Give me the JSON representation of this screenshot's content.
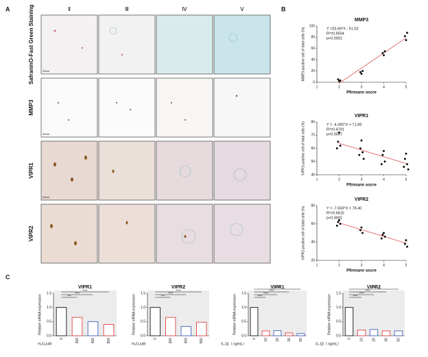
{
  "panel_labels": [
    "A",
    "B",
    "C"
  ],
  "panel_a": {
    "columns": [
      "Ⅱ",
      "Ⅲ",
      "Ⅳ",
      "Ⅴ"
    ],
    "rows": [
      "SafraninO-Fast Green Staining",
      "MMP3",
      "VIPR1",
      "VIPR2"
    ],
    "scale_bar": "20um"
  },
  "chart_data": [
    {
      "type": "scatter",
      "title": "MMP3",
      "xlabel": "Pfirmann socre",
      "ylabel": "MMP3-positive cell of total cells (%)",
      "annotations": [
        "Y =25.69*X - 51.02",
        "R²=0.9504",
        "p<0.0001"
      ],
      "x": [
        2,
        2,
        2,
        3,
        3,
        3,
        4,
        4,
        4,
        5,
        5,
        5
      ],
      "values": [
        2,
        5,
        3,
        15,
        18,
        20,
        48,
        52,
        55,
        75,
        82,
        88
      ],
      "xlim": [
        1,
        5
      ],
      "xticks": [
        1,
        2,
        3,
        4,
        5
      ],
      "ylim": [
        0,
        100
      ],
      "yticks": [
        0,
        20,
        40,
        60,
        80,
        100
      ],
      "color": "#111111",
      "line_color": "#e05050"
    },
    {
      "type": "scatter",
      "title": "VIPR1",
      "xlabel": "Pfirmann socre",
      "ylabel": "VIPR1-positive cell of total cells (%)",
      "annotations": [
        "Y = -4.492*X + 71.89",
        "R²=0.4791",
        "p=0.0007"
      ],
      "x": [
        2,
        2,
        2,
        2,
        3,
        3,
        3,
        3,
        3,
        4,
        4,
        4,
        4,
        5,
        5,
        5,
        5,
        5
      ],
      "values": [
        72,
        65,
        62,
        60,
        66,
        60,
        57,
        55,
        52,
        58,
        55,
        50,
        48,
        56,
        52,
        48,
        46,
        44
      ],
      "xlim": [
        1,
        5
      ],
      "xticks": [
        1,
        2,
        3,
        4,
        5
      ],
      "ylim": [
        40,
        80
      ],
      "yticks": [
        40,
        50,
        60,
        70,
        80
      ],
      "color": "#111111",
      "line_color": "#e05050"
    },
    {
      "type": "scatter",
      "title": "VIPR2",
      "xlabel": "Pfirmann socre",
      "ylabel": "VIPR2-positive cell of total cells (%)",
      "annotations": [
        "Y = -7.563*X + 78.40",
        "R²=0.6815",
        "p<0.0001"
      ],
      "x": [
        2,
        2,
        2,
        2,
        3,
        3,
        3,
        4,
        4,
        4,
        4,
        5,
        5,
        5
      ],
      "values": [
        64,
        62,
        60,
        58,
        56,
        53,
        50,
        50,
        48,
        46,
        44,
        42,
        38,
        35
      ],
      "xlim": [
        1,
        5
      ],
      "xticks": [
        1,
        2,
        3,
        4,
        5
      ],
      "ylim": [
        20,
        80
      ],
      "yticks": [
        20,
        40,
        60,
        80
      ],
      "color": "#111111",
      "line_color": "#e05050"
    },
    {
      "type": "bar",
      "title": "VIPR1",
      "xlabel": "H₂O₂/uM",
      "ylabel": "Relative mRNA expression",
      "categories": [
        "0",
        "200",
        "400",
        "500"
      ],
      "values": [
        1.0,
        0.65,
        0.5,
        0.4
      ],
      "colors": [
        "#111111",
        "#e04040",
        "#4060c0",
        "#e04040"
      ],
      "annotations": [
        "***",
        "****",
        "****"
      ],
      "ylim": [
        0,
        1.5
      ],
      "yticks": [
        {
          "value": 0,
          "label": "0.0"
        },
        0.5,
        {
          "value": 1,
          "label": "1.0"
        },
        1.5
      ]
    },
    {
      "type": "bar",
      "title": "VIPR2",
      "xlabel": "H₂O₂/uM",
      "ylabel": "Relative mRNA expression",
      "categories": [
        "0",
        "200",
        "400",
        "500"
      ],
      "values": [
        1.0,
        0.65,
        0.33,
        0.48
      ],
      "colors": [
        "#111111",
        "#e04040",
        "#4060c0",
        "#e04040"
      ],
      "annotations": [
        "***",
        "****",
        "****"
      ],
      "ylim": [
        0,
        1.5
      ],
      "yticks": [
        {
          "value": 0,
          "label": "0.0"
        },
        0.5,
        {
          "value": 1,
          "label": "1.0"
        },
        1.5
      ]
    },
    {
      "type": "bar",
      "title": "VIPR1",
      "xlabel": "IL-1β（ ng/mL）",
      "ylabel": "Relative mRNA expression",
      "categories": [
        "0",
        "10",
        "20",
        "30",
        "50"
      ],
      "values": [
        1.0,
        0.17,
        0.18,
        0.1,
        0.08
      ],
      "colors": [
        "#111111",
        "#e04040",
        "#4060c0",
        "#e04040",
        "#4060c0"
      ],
      "annotations": [
        "****",
        "****",
        "****",
        "****"
      ],
      "ylim": [
        0,
        1.5
      ],
      "yticks": [
        {
          "value": 0,
          "label": "0.0"
        },
        0.5,
        {
          "value": 1,
          "label": "1.0"
        },
        1.5
      ]
    },
    {
      "type": "bar",
      "title": "VIPR2",
      "xlabel": "IL-1β（ ng/mL）",
      "ylabel": "Relative mRNA expression",
      "categories": [
        "0",
        "10",
        "20",
        "30",
        "50"
      ],
      "values": [
        1.0,
        0.2,
        0.22,
        0.17,
        0.17
      ],
      "colors": [
        "#111111",
        "#e04040",
        "#4060c0",
        "#e04040",
        "#4060c0"
      ],
      "annotations": [
        "****",
        "****",
        "****",
        "****"
      ],
      "ylim": [
        0,
        1.5
      ],
      "yticks": [
        {
          "value": 0,
          "label": "0.0"
        },
        0.5,
        {
          "value": 1,
          "label": "1.0"
        },
        1.5
      ]
    }
  ]
}
